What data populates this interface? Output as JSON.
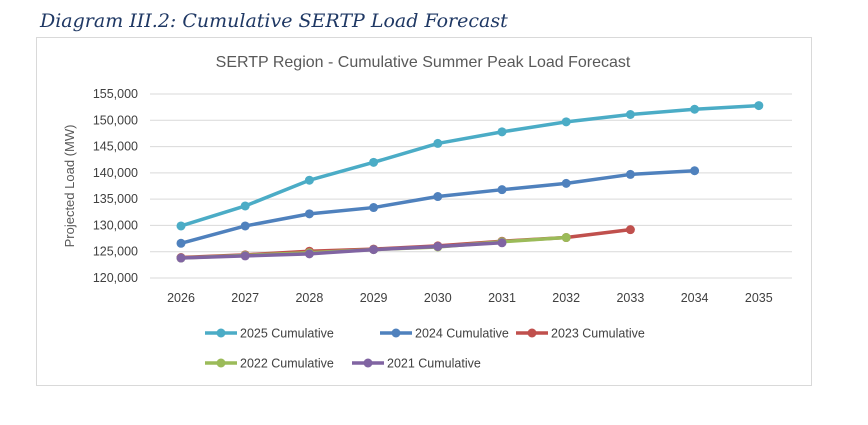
{
  "caption": "Diagram III.2: Cumulative SERTP Load Forecast",
  "chart_data": {
    "type": "line",
    "title": "SERTP Region - Cumulative Summer Peak Load Forecast",
    "xlabel": "",
    "ylabel": "Projected Load (MW)",
    "x": [
      2026,
      2027,
      2028,
      2029,
      2030,
      2031,
      2032,
      2033,
      2034,
      2035
    ],
    "ylim": [
      120000,
      155000
    ],
    "yticks": [
      120000,
      125000,
      130000,
      135000,
      140000,
      145000,
      150000,
      155000
    ],
    "ytick_labels": [
      "120,000",
      "125,000",
      "130,000",
      "135,000",
      "140,000",
      "145,000",
      "150,000",
      "155,000"
    ],
    "grid": true,
    "legend_position": "bottom",
    "series": [
      {
        "name": "2025 Cumulative",
        "color": "#4BACC6",
        "values": [
          129900,
          133700,
          138600,
          142000,
          145600,
          147800,
          149700,
          151100,
          152100,
          152800
        ]
      },
      {
        "name": "2024 Cumulative",
        "color": "#4F81BD",
        "values": [
          126600,
          129900,
          132200,
          133400,
          135500,
          136800,
          138000,
          139700,
          140400,
          null
        ]
      },
      {
        "name": "2023 Cumulative",
        "color": "#C0504D",
        "values": [
          123900,
          124400,
          125100,
          125500,
          126100,
          127000,
          127700,
          129200,
          null,
          null
        ]
      },
      {
        "name": "2022 Cumulative",
        "color": "#9BBB59",
        "values": [
          123800,
          124300,
          124800,
          125400,
          125900,
          126900,
          127700,
          null,
          null,
          null
        ]
      },
      {
        "name": "2021 Cumulative",
        "color": "#8064A2",
        "values": [
          123800,
          124200,
          124600,
          125400,
          126000,
          126700,
          null,
          null,
          null,
          null
        ]
      }
    ]
  }
}
